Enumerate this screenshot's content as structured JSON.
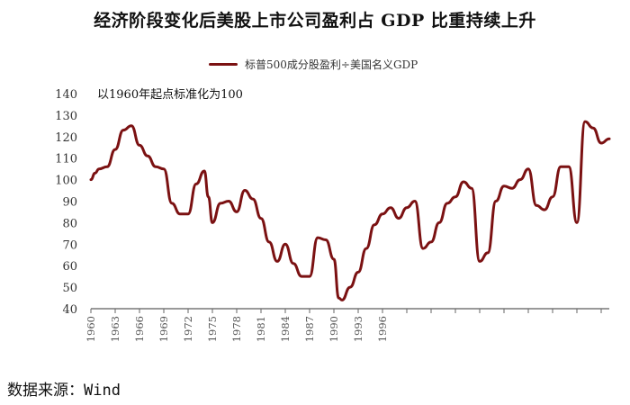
{
  "title": "经济阶段变化后美股上市公司盈利占 GDP 比重持续上升",
  "legend_label": "标普500成分股盈利÷美国名义GDP",
  "note": "以1960年起点标准化为100",
  "source": "数据来源：Wind",
  "colors": {
    "line": "#7b1112",
    "axis": "#333333"
  },
  "chart_data": {
    "type": "line",
    "title": "经济阶段变化后美股上市公司盈利占 GDP 比重持续上升",
    "ylim": [
      40,
      140
    ],
    "yticks": [
      40,
      50,
      60,
      70,
      80,
      90,
      100,
      110,
      120,
      130,
      140
    ],
    "xlim": [
      1960,
      2024
    ],
    "xtick_labels": [
      "1960",
      "1963",
      "1966",
      "1969",
      "1972",
      "1975",
      "1978",
      "1981",
      "1984",
      "1987",
      "1990",
      "1993",
      "1996"
    ],
    "series": [
      {
        "name": "标普500成分股盈利÷美国名义GDP",
        "x": [
          1960,
          1960.5,
          1961,
          1962,
          1963,
          1964,
          1965,
          1966,
          1967,
          1968,
          1969,
          1970,
          1971,
          1972,
          1973,
          1974,
          1974.5,
          1975,
          1976,
          1977,
          1978,
          1979,
          1980,
          1981,
          1982,
          1983,
          1984,
          1985,
          1986,
          1987,
          1988,
          1989,
          1990,
          1990.6,
          1991,
          1992,
          1993,
          1994,
          1995,
          1996,
          1997,
          1998,
          1999,
          2000,
          2001,
          2002,
          2003,
          2004,
          2005,
          2006,
          2007,
          2008,
          2009,
          2010,
          2011,
          2012,
          2013,
          2014,
          2015,
          2016,
          2017,
          2018,
          2019,
          2020,
          2021,
          2022,
          2023,
          2024
        ],
        "values": [
          100,
          103,
          105,
          106,
          114,
          123,
          125,
          116,
          111,
          106,
          105,
          89,
          84,
          84,
          98,
          104,
          92,
          80,
          89,
          90,
          85,
          95,
          91,
          82,
          71,
          62,
          70,
          61,
          55,
          55,
          73,
          72,
          63,
          45,
          44,
          50,
          57,
          68,
          79,
          84,
          87,
          82,
          87,
          90,
          68,
          71,
          80,
          89,
          92,
          99,
          96,
          62,
          66,
          90,
          97,
          96,
          100,
          105,
          88,
          86,
          92,
          106,
          106,
          80,
          127,
          124,
          117,
          119
        ]
      }
    ]
  }
}
